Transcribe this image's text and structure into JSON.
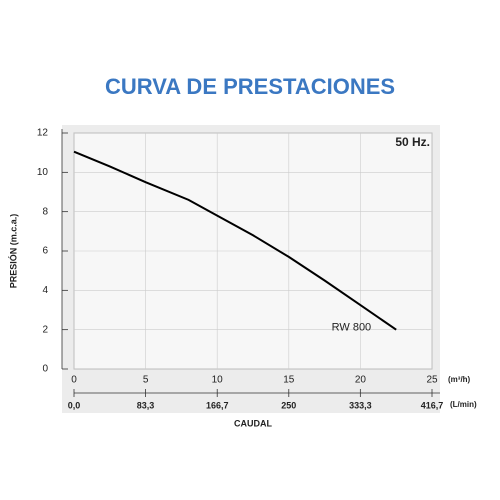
{
  "chart_data": {
    "type": "line",
    "title": "CURVA DE PRESTACIONES",
    "annotation": "50 Hz.",
    "x_label": "CAUDAL",
    "y_label": "PRESIÓN (m.c.a.)",
    "x_unit": "(m³/h)",
    "x2_unit": "(L/min)",
    "xlim": [
      0,
      25
    ],
    "xticks": [
      0,
      5,
      10,
      15,
      20,
      25
    ],
    "ylim": [
      0,
      12
    ],
    "yticks": [
      0,
      2,
      4,
      6,
      8,
      10,
      12
    ],
    "x2lim": [
      0,
      416.7
    ],
    "x2ticks": [
      {
        "value": 0,
        "label": "0,0"
      },
      {
        "value": 83.3,
        "label": "83,3"
      },
      {
        "value": 166.7,
        "label": "166,7"
      },
      250,
      {
        "value": 333.3,
        "label": "333,3"
      },
      {
        "value": 416.7,
        "label": "416,7"
      }
    ],
    "grid": true,
    "series": [
      {
        "name": "RW 800",
        "color": "#000000",
        "x": [
          0,
          2.5,
          5,
          8,
          10,
          12.5,
          15,
          17.5,
          20,
          22.5
        ],
        "values": [
          11.05,
          10.3,
          9.5,
          8.6,
          7.8,
          6.8,
          5.7,
          4.5,
          3.25,
          2.0
        ]
      }
    ]
  }
}
